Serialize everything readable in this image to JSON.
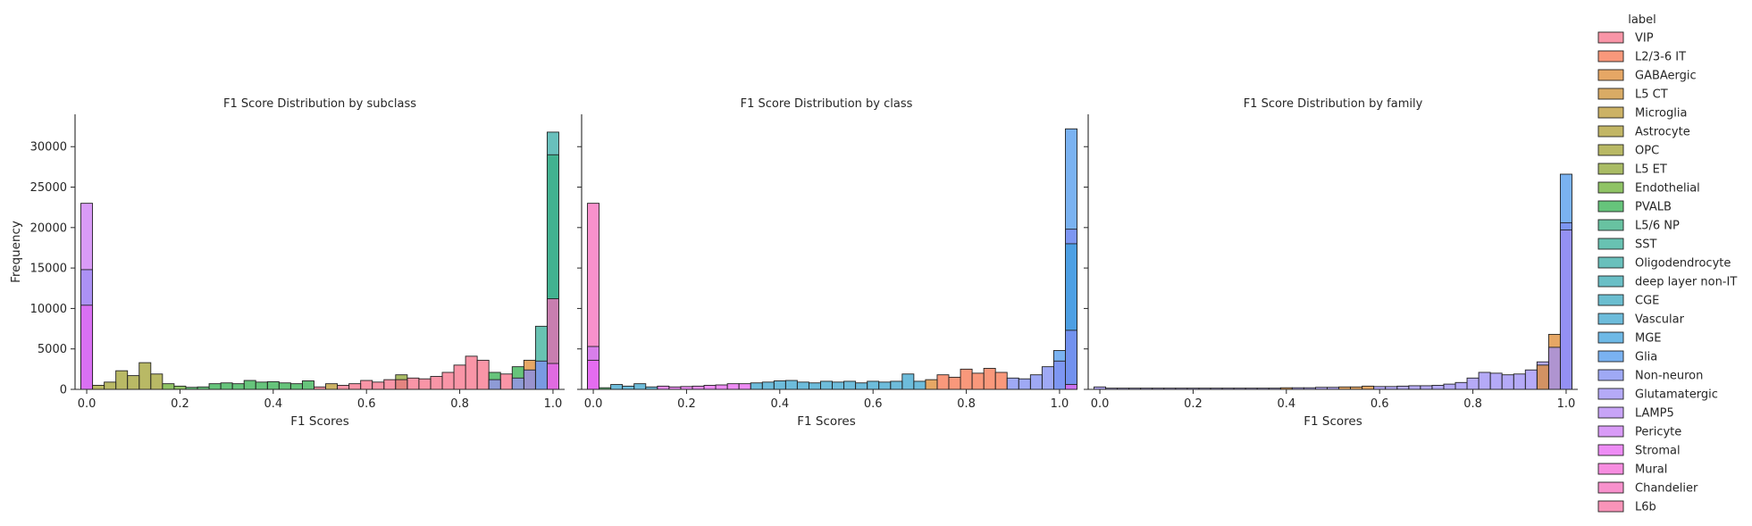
{
  "chart_data": {
    "type": "histogram",
    "ylabel": "Frequency",
    "legend": {
      "title": "label",
      "placement": "right",
      "entries": [
        {
          "name": "VIP",
          "color": "#f77189"
        },
        {
          "name": "L2/3-6 IT",
          "color": "#f7754f"
        },
        {
          "name": "GABAergic",
          "color": "#dd8a32"
        },
        {
          "name": "L5 CT",
          "color": "#cc8f32"
        },
        {
          "name": "Microglia",
          "color": "#bb9832"
        },
        {
          "name": "Astrocyte",
          "color": "#ae9d31"
        },
        {
          "name": "OPC",
          "color": "#a1a131"
        },
        {
          "name": "L5 ET",
          "color": "#8ea531"
        },
        {
          "name": "Endothelial",
          "color": "#6aaf31"
        },
        {
          "name": "PVALB",
          "color": "#33b04f"
        },
        {
          "name": "L5/6 NP",
          "color": "#35ae81"
        },
        {
          "name": "SST",
          "color": "#36ad98"
        },
        {
          "name": "Oligodendrocyte",
          "color": "#37aba6"
        },
        {
          "name": "deep layer non-IT",
          "color": "#38aab3"
        },
        {
          "name": "CGE",
          "color": "#3aa8c0"
        },
        {
          "name": "Vascular",
          "color": "#3ca5cf"
        },
        {
          "name": "MGE",
          "color": "#3ea1de"
        },
        {
          "name": "Glia",
          "color": "#4d98ec"
        },
        {
          "name": "Non-neuron",
          "color": "#7f8cf1"
        },
        {
          "name": "Glutamatergic",
          "color": "#9c8ef4"
        },
        {
          "name": "LAMP5",
          "color": "#b585f4"
        },
        {
          "name": "Pericyte",
          "color": "#cc7af4"
        },
        {
          "name": "Stromal",
          "color": "#e865f2"
        },
        {
          "name": "Mural",
          "color": "#f467d6"
        },
        {
          "name": "Chandelier",
          "color": "#f66cbb"
        },
        {
          "name": "L6b",
          "color": "#f770a1"
        }
      ]
    },
    "y_ticks": [
      0,
      5000,
      10000,
      15000,
      20000,
      25000,
      30000
    ],
    "x_ticks": [
      "0.0",
      "0.2",
      "0.4",
      "0.6",
      "0.8",
      "1.0"
    ],
    "ylim": [
      0,
      34000
    ],
    "xlim": [
      -0.025,
      1.025
    ],
    "bin_width": 0.025,
    "panels": [
      {
        "title": "F1 Score Distribution by subclass",
        "xlabel": "F1 Scores",
        "bars": [
          {
            "x": 0.0,
            "y": 23000,
            "label": "Pericyte"
          },
          {
            "x": 0.0,
            "y": 14800,
            "label": "Glutamatergic"
          },
          {
            "x": 0.0,
            "y": 10400,
            "label": "Stromal"
          },
          {
            "x": 0.025,
            "y": 500,
            "label": "OPC"
          },
          {
            "x": 0.05,
            "y": 900,
            "label": "OPC"
          },
          {
            "x": 0.075,
            "y": 2300,
            "label": "OPC"
          },
          {
            "x": 0.1,
            "y": 1700,
            "label": "OPC"
          },
          {
            "x": 0.125,
            "y": 3300,
            "label": "OPC"
          },
          {
            "x": 0.15,
            "y": 1900,
            "label": "OPC"
          },
          {
            "x": 0.175,
            "y": 700,
            "label": "Endothelial"
          },
          {
            "x": 0.2,
            "y": 400,
            "label": "Endothelial"
          },
          {
            "x": 0.225,
            "y": 250,
            "label": "PVALB"
          },
          {
            "x": 0.25,
            "y": 300,
            "label": "PVALB"
          },
          {
            "x": 0.275,
            "y": 700,
            "label": "PVALB"
          },
          {
            "x": 0.3,
            "y": 800,
            "label": "PVALB"
          },
          {
            "x": 0.325,
            "y": 700,
            "label": "PVALB"
          },
          {
            "x": 0.35,
            "y": 1100,
            "label": "PVALB"
          },
          {
            "x": 0.375,
            "y": 900,
            "label": "PVALB"
          },
          {
            "x": 0.4,
            "y": 950,
            "label": "PVALB"
          },
          {
            "x": 0.425,
            "y": 800,
            "label": "PVALB"
          },
          {
            "x": 0.45,
            "y": 700,
            "label": "PVALB"
          },
          {
            "x": 0.475,
            "y": 1050,
            "label": "PVALB"
          },
          {
            "x": 0.5,
            "y": 300,
            "label": "VIP"
          },
          {
            "x": 0.525,
            "y": 700,
            "label": "Microglia"
          },
          {
            "x": 0.55,
            "y": 500,
            "label": "VIP"
          },
          {
            "x": 0.575,
            "y": 700,
            "label": "VIP"
          },
          {
            "x": 0.6,
            "y": 1100,
            "label": "VIP"
          },
          {
            "x": 0.625,
            "y": 900,
            "label": "VIP"
          },
          {
            "x": 0.65,
            "y": 1200,
            "label": "VIP"
          },
          {
            "x": 0.675,
            "y": 1800,
            "label": "L5 ET"
          },
          {
            "x": 0.675,
            "y": 1200,
            "label": "VIP"
          },
          {
            "x": 0.7,
            "y": 1400,
            "label": "VIP"
          },
          {
            "x": 0.725,
            "y": 1300,
            "label": "VIP"
          },
          {
            "x": 0.75,
            "y": 1600,
            "label": "VIP"
          },
          {
            "x": 0.775,
            "y": 2100,
            "label": "VIP"
          },
          {
            "x": 0.8,
            "y": 3000,
            "label": "VIP"
          },
          {
            "x": 0.825,
            "y": 4100,
            "label": "VIP"
          },
          {
            "x": 0.85,
            "y": 3600,
            "label": "VIP"
          },
          {
            "x": 0.875,
            "y": 2100,
            "label": "PVALB"
          },
          {
            "x": 0.875,
            "y": 1200,
            "label": "Glutamatergic"
          },
          {
            "x": 0.9,
            "y": 1900,
            "label": "VIP"
          },
          {
            "x": 0.925,
            "y": 2800,
            "label": "PVALB"
          },
          {
            "x": 0.925,
            "y": 1400,
            "label": "Glutamatergic"
          },
          {
            "x": 0.95,
            "y": 3600,
            "label": "GABAergic"
          },
          {
            "x": 0.95,
            "y": 2400,
            "label": "Non-neuron"
          },
          {
            "x": 0.975,
            "y": 7800,
            "label": "SST"
          },
          {
            "x": 0.975,
            "y": 3500,
            "label": "Non-neuron"
          },
          {
            "x": 1.0,
            "y": 31800,
            "label": "Oligodendrocyte"
          },
          {
            "x": 1.0,
            "y": 29000,
            "label": "L5/6 NP"
          },
          {
            "x": 1.0,
            "y": 11200,
            "label": "Chandelier"
          },
          {
            "x": 1.0,
            "y": 3200,
            "label": "Stromal"
          }
        ]
      },
      {
        "title": "F1 Score Distribution by class",
        "xlabel": "F1 Scores",
        "bars": [
          {
            "x": 0.0,
            "y": 23000,
            "label": "Chandelier"
          },
          {
            "x": 0.0,
            "y": 5300,
            "label": "Pericyte"
          },
          {
            "x": 0.0,
            "y": 3600,
            "label": "Stromal"
          },
          {
            "x": 0.025,
            "y": 200,
            "label": "PVALB"
          },
          {
            "x": 0.05,
            "y": 600,
            "label": "Vascular"
          },
          {
            "x": 0.075,
            "y": 400,
            "label": "Vascular"
          },
          {
            "x": 0.1,
            "y": 700,
            "label": "Vascular"
          },
          {
            "x": 0.125,
            "y": 300,
            "label": "Vascular"
          },
          {
            "x": 0.15,
            "y": 400,
            "label": "Stromal"
          },
          {
            "x": 0.175,
            "y": 300,
            "label": "Stromal"
          },
          {
            "x": 0.2,
            "y": 350,
            "label": "Stromal"
          },
          {
            "x": 0.225,
            "y": 400,
            "label": "Stromal"
          },
          {
            "x": 0.25,
            "y": 500,
            "label": "Stromal"
          },
          {
            "x": 0.275,
            "y": 550,
            "label": "Stromal"
          },
          {
            "x": 0.3,
            "y": 700,
            "label": "Stromal"
          },
          {
            "x": 0.325,
            "y": 700,
            "label": "Stromal"
          },
          {
            "x": 0.35,
            "y": 800,
            "label": "Vascular"
          },
          {
            "x": 0.375,
            "y": 900,
            "label": "Vascular"
          },
          {
            "x": 0.4,
            "y": 1050,
            "label": "Vascular"
          },
          {
            "x": 0.425,
            "y": 1100,
            "label": "Vascular"
          },
          {
            "x": 0.45,
            "y": 900,
            "label": "Vascular"
          },
          {
            "x": 0.475,
            "y": 800,
            "label": "Vascular"
          },
          {
            "x": 0.5,
            "y": 1000,
            "label": "Vascular"
          },
          {
            "x": 0.525,
            "y": 900,
            "label": "Vascular"
          },
          {
            "x": 0.55,
            "y": 1000,
            "label": "Vascular"
          },
          {
            "x": 0.575,
            "y": 800,
            "label": "Vascular"
          },
          {
            "x": 0.6,
            "y": 1000,
            "label": "Vascular"
          },
          {
            "x": 0.625,
            "y": 900,
            "label": "Vascular"
          },
          {
            "x": 0.65,
            "y": 1000,
            "label": "Vascular"
          },
          {
            "x": 0.675,
            "y": 1900,
            "label": "Vascular"
          },
          {
            "x": 0.7,
            "y": 1000,
            "label": "Vascular"
          },
          {
            "x": 0.725,
            "y": 1200,
            "label": "GABAergic"
          },
          {
            "x": 0.75,
            "y": 1800,
            "label": "L2/3-6 IT"
          },
          {
            "x": 0.775,
            "y": 1500,
            "label": "L2/3-6 IT"
          },
          {
            "x": 0.8,
            "y": 2500,
            "label": "L2/3-6 IT"
          },
          {
            "x": 0.825,
            "y": 2000,
            "label": "L2/3-6 IT"
          },
          {
            "x": 0.85,
            "y": 2600,
            "label": "L2/3-6 IT"
          },
          {
            "x": 0.875,
            "y": 2100,
            "label": "L2/3-6 IT"
          },
          {
            "x": 0.9,
            "y": 1400,
            "label": "Non-neuron"
          },
          {
            "x": 0.925,
            "y": 1300,
            "label": "Non-neuron"
          },
          {
            "x": 0.95,
            "y": 1800,
            "label": "Non-neuron"
          },
          {
            "x": 0.975,
            "y": 2800,
            "label": "Non-neuron"
          },
          {
            "x": 1.0,
            "y": 4800,
            "label": "Glia"
          },
          {
            "x": 1.0,
            "y": 3500,
            "label": "Non-neuron"
          },
          {
            "x": 1.025,
            "y": 32200,
            "label": "Glia"
          },
          {
            "x": 1.025,
            "y": 19800,
            "label": "Non-neuron"
          },
          {
            "x": 1.025,
            "y": 18000,
            "label": "MGE"
          },
          {
            "x": 1.025,
            "y": 7300,
            "label": "Non-neuron"
          },
          {
            "x": 1.025,
            "y": 600,
            "label": "Stromal"
          }
        ]
      },
      {
        "title": "F1 Score Distribution by family",
        "xlabel": "F1 Scores",
        "bars": [
          {
            "x": 0.0,
            "y": 300,
            "label": "Glutamatergic"
          },
          {
            "x": 0.025,
            "y": 150,
            "label": "Glutamatergic"
          },
          {
            "x": 0.05,
            "y": 150,
            "label": "Glutamatergic"
          },
          {
            "x": 0.075,
            "y": 150,
            "label": "Glutamatergic"
          },
          {
            "x": 0.1,
            "y": 150,
            "label": "Glutamatergic"
          },
          {
            "x": 0.125,
            "y": 150,
            "label": "Glutamatergic"
          },
          {
            "x": 0.15,
            "y": 150,
            "label": "Glutamatergic"
          },
          {
            "x": 0.175,
            "y": 150,
            "label": "Glutamatergic"
          },
          {
            "x": 0.2,
            "y": 150,
            "label": "Glutamatergic"
          },
          {
            "x": 0.225,
            "y": 150,
            "label": "Glutamatergic"
          },
          {
            "x": 0.25,
            "y": 150,
            "label": "Glutamatergic"
          },
          {
            "x": 0.275,
            "y": 150,
            "label": "Glutamatergic"
          },
          {
            "x": 0.3,
            "y": 150,
            "label": "Glutamatergic"
          },
          {
            "x": 0.325,
            "y": 150,
            "label": "Glutamatergic"
          },
          {
            "x": 0.35,
            "y": 150,
            "label": "Glutamatergic"
          },
          {
            "x": 0.375,
            "y": 150,
            "label": "Glutamatergic"
          },
          {
            "x": 0.4,
            "y": 200,
            "label": "GABAergic"
          },
          {
            "x": 0.425,
            "y": 200,
            "label": "Glutamatergic"
          },
          {
            "x": 0.45,
            "y": 200,
            "label": "Glutamatergic"
          },
          {
            "x": 0.475,
            "y": 250,
            "label": "Glutamatergic"
          },
          {
            "x": 0.5,
            "y": 250,
            "label": "Glutamatergic"
          },
          {
            "x": 0.525,
            "y": 300,
            "label": "GABAergic"
          },
          {
            "x": 0.55,
            "y": 300,
            "label": "GABAergic"
          },
          {
            "x": 0.575,
            "y": 400,
            "label": "GABAergic"
          },
          {
            "x": 0.6,
            "y": 350,
            "label": "Glutamatergic"
          },
          {
            "x": 0.625,
            "y": 350,
            "label": "Glutamatergic"
          },
          {
            "x": 0.65,
            "y": 400,
            "label": "Glutamatergic"
          },
          {
            "x": 0.675,
            "y": 450,
            "label": "Glutamatergic"
          },
          {
            "x": 0.7,
            "y": 450,
            "label": "Glutamatergic"
          },
          {
            "x": 0.725,
            "y": 500,
            "label": "Glutamatergic"
          },
          {
            "x": 0.75,
            "y": 650,
            "label": "Glutamatergic"
          },
          {
            "x": 0.775,
            "y": 850,
            "label": "Glutamatergic"
          },
          {
            "x": 0.8,
            "y": 1400,
            "label": "Glutamatergic"
          },
          {
            "x": 0.825,
            "y": 2100,
            "label": "Glutamatergic"
          },
          {
            "x": 0.85,
            "y": 2000,
            "label": "Glutamatergic"
          },
          {
            "x": 0.875,
            "y": 1800,
            "label": "Glutamatergic"
          },
          {
            "x": 0.9,
            "y": 1900,
            "label": "Glutamatergic"
          },
          {
            "x": 0.925,
            "y": 2400,
            "label": "Glutamatergic"
          },
          {
            "x": 0.95,
            "y": 3400,
            "label": "Glutamatergic"
          },
          {
            "x": 0.95,
            "y": 3000,
            "label": "GABAergic"
          },
          {
            "x": 0.975,
            "y": 6800,
            "label": "GABAergic"
          },
          {
            "x": 0.975,
            "y": 5200,
            "label": "Glutamatergic"
          },
          {
            "x": 1.0,
            "y": 26600,
            "label": "Glia"
          },
          {
            "x": 1.0,
            "y": 20600,
            "label": "Non-neuron"
          },
          {
            "x": 1.0,
            "y": 19700,
            "label": "Glutamatergic"
          }
        ]
      }
    ]
  }
}
